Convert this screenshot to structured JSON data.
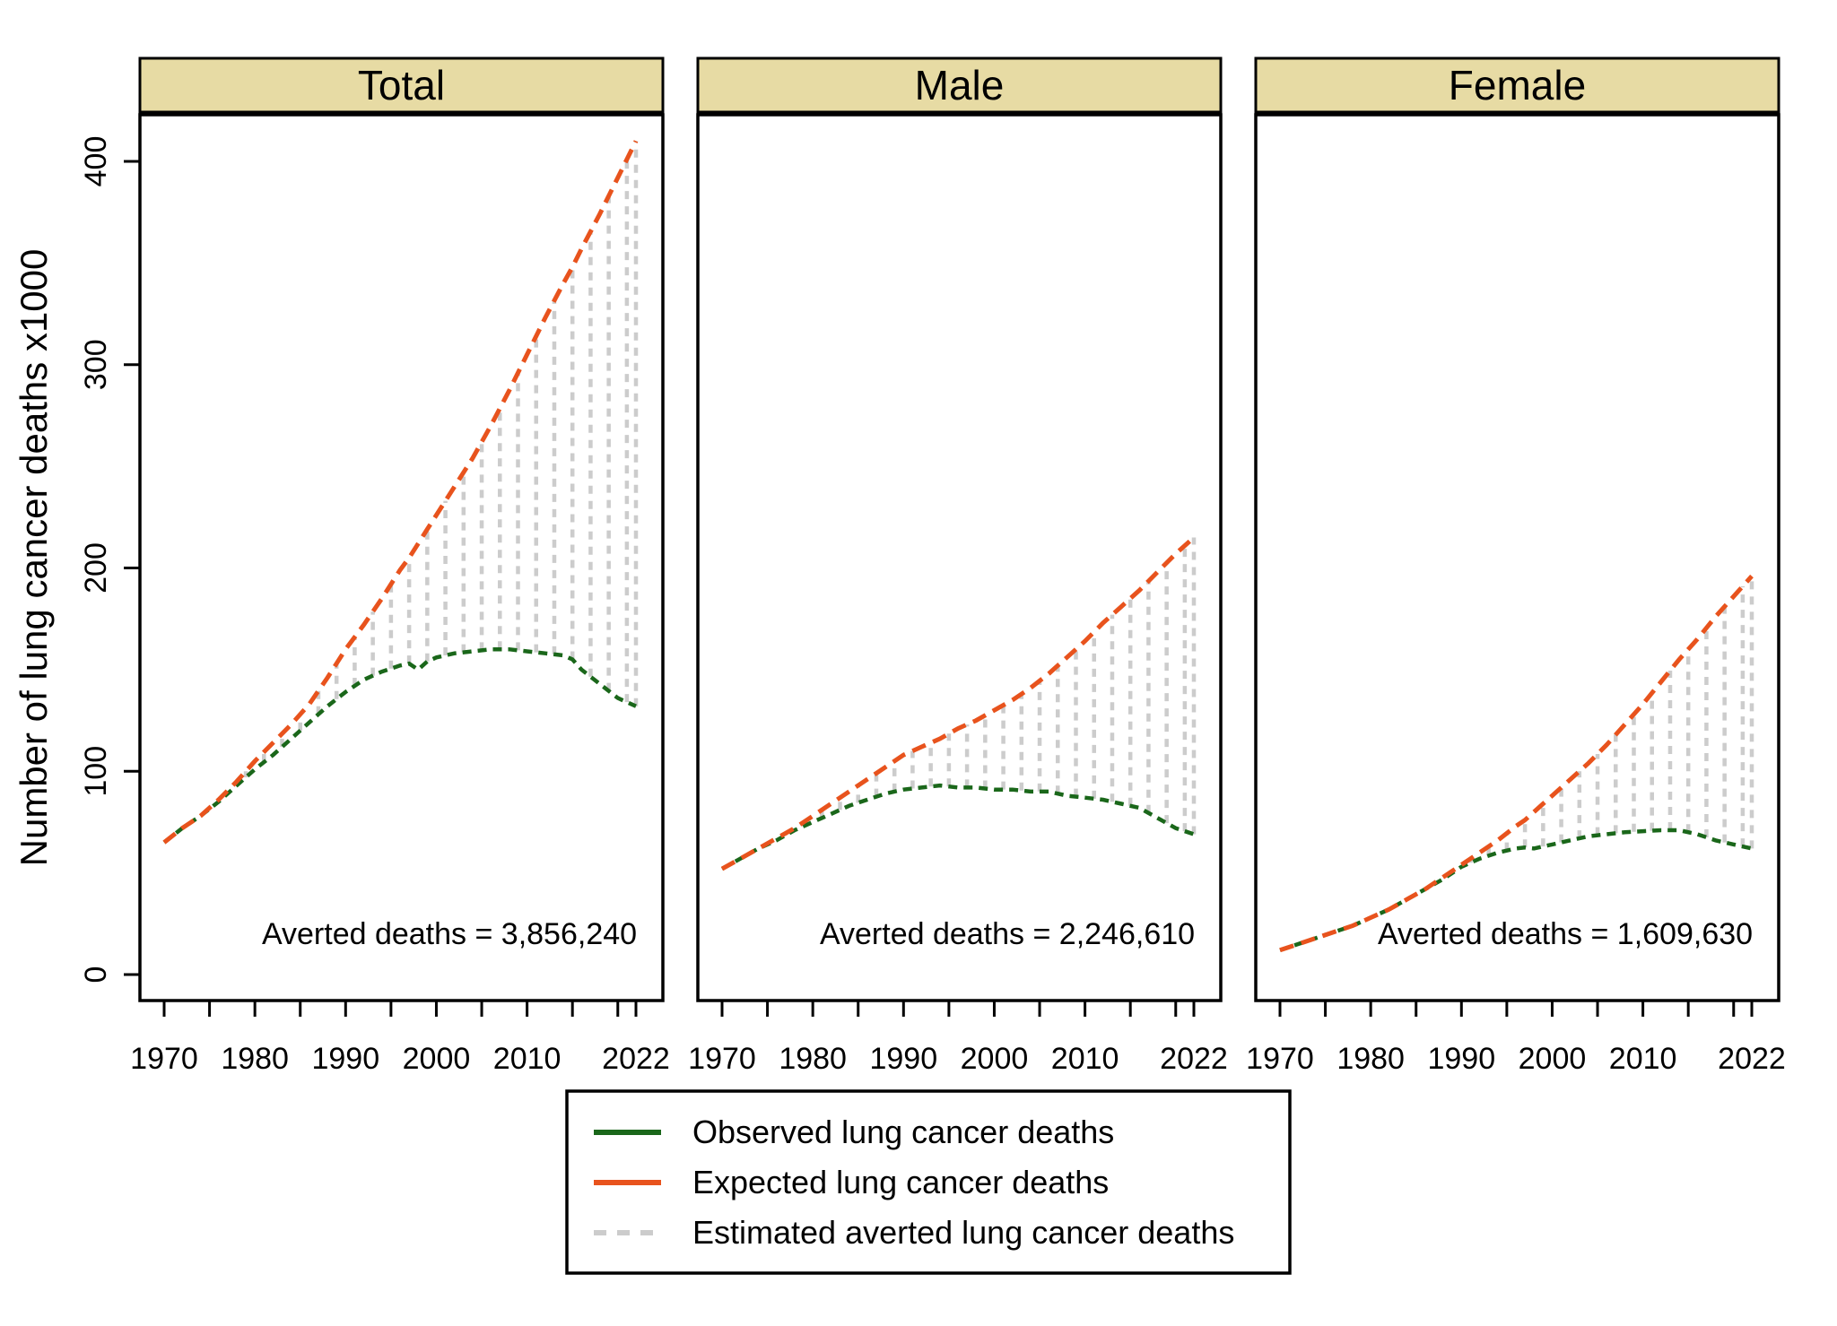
{
  "chart_data": {
    "type": "line",
    "title": "",
    "ylabel": "Number of lung cancer deaths x1000",
    "y_ticks": [
      0,
      100,
      200,
      300,
      400
    ],
    "ylim": [
      -13,
      422
    ],
    "x_major_tick_labels": [
      "1970",
      "1980",
      "1990",
      "2000",
      "2010",
      "2022"
    ],
    "x_major_tick_years": [
      1970,
      1980,
      1990,
      2000,
      2010,
      2022
    ],
    "x_all_tick_years": [
      1970,
      1975,
      1980,
      1985,
      1990,
      1995,
      2000,
      2005,
      2010,
      2015,
      2020,
      2022
    ],
    "xlim": [
      1967.3,
      2025
    ],
    "grid": "off",
    "legend_position": "bottom-center",
    "colors": {
      "observed": "#1a671a",
      "expected": "#e8531d",
      "averted": "#cccccc",
      "strip_fill": "#e7dba4",
      "border": "#000000",
      "background": "#ffffff"
    },
    "panels": [
      {
        "id": "total",
        "title": "Total",
        "averted_label": "Averted deaths = 3,856,240",
        "years": [
          1970,
          1972,
          1974,
          1976,
          1978,
          1980,
          1982,
          1984,
          1986,
          1988,
          1990,
          1992,
          1994,
          1996,
          1997,
          1998,
          1999,
          2000,
          2002,
          2004,
          2006,
          2008,
          2010,
          2012,
          2014,
          2015,
          2016,
          2018,
          2020,
          2022
        ],
        "expected": [
          65,
          72,
          78,
          86,
          95,
          105,
          114,
          123,
          133,
          146,
          160,
          172,
          185,
          199,
          205,
          212,
          219,
          226,
          240,
          254,
          270,
          287,
          305,
          323,
          340,
          348,
          357,
          374,
          392,
          410
        ],
        "observed": [
          65,
          72,
          78,
          85,
          93,
          101,
          108,
          116,
          124,
          132,
          139,
          145,
          149,
          152,
          153,
          150,
          154,
          156,
          158,
          159,
          160,
          160,
          159,
          158,
          157,
          155,
          150,
          143,
          136,
          132
        ]
      },
      {
        "id": "male",
        "title": "Male",
        "averted_label": "Averted deaths = 2,246,610",
        "years": [
          1970,
          1972,
          1974,
          1976,
          1978,
          1980,
          1982,
          1984,
          1986,
          1988,
          1990,
          1992,
          1994,
          1996,
          1998,
          2000,
          2002,
          2004,
          2006,
          2008,
          2010,
          2012,
          2014,
          2016,
          2018,
          2020,
          2022
        ],
        "expected": [
          52,
          57,
          62,
          67,
          72,
          78,
          84,
          90,
          96,
          102,
          108,
          112,
          116,
          121,
          125,
          130,
          135,
          141,
          148,
          156,
          164,
          173,
          181,
          189,
          198,
          207,
          215
        ],
        "observed": [
          52,
          57,
          62,
          66,
          71,
          75,
          79,
          83,
          86,
          89,
          91,
          92,
          93,
          92,
          92,
          91,
          91,
          90,
          90,
          88,
          87,
          86,
          84,
          82,
          77,
          72,
          69
        ]
      },
      {
        "id": "female",
        "title": "Female",
        "averted_label": "Averted deaths = 1,609,630",
        "years": [
          1970,
          1972,
          1974,
          1976,
          1978,
          1980,
          1982,
          1984,
          1986,
          1988,
          1990,
          1992,
          1994,
          1996,
          1997,
          1998,
          1999,
          2000,
          2002,
          2004,
          2006,
          2008,
          2010,
          2012,
          2014,
          2016,
          2018,
          2020,
          2022
        ],
        "expected": [
          12,
          15,
          18,
          21,
          24,
          28,
          32,
          37,
          42,
          48,
          54,
          60,
          66,
          73,
          76,
          80,
          84,
          88,
          96,
          104,
          113,
          123,
          133,
          144,
          155,
          165,
          176,
          186,
          196
        ],
        "observed": [
          12,
          15,
          18,
          21,
          24,
          28,
          32,
          37,
          42,
          47,
          53,
          57,
          60,
          62,
          62.5,
          62,
          63,
          64,
          66,
          68,
          69,
          70,
          70.5,
          71,
          71,
          69,
          66,
          64,
          62
        ]
      }
    ],
    "legend": [
      {
        "id": "observed",
        "label": "Observed lung cancer deaths",
        "color": "#1a671a",
        "style": "solid"
      },
      {
        "id": "expected",
        "label": "Expected lung cancer deaths",
        "color": "#e8531d",
        "style": "solid"
      },
      {
        "id": "averted",
        "label": "Estimated averted lung cancer deaths",
        "color": "#cccccc",
        "style": "dashed"
      }
    ]
  }
}
